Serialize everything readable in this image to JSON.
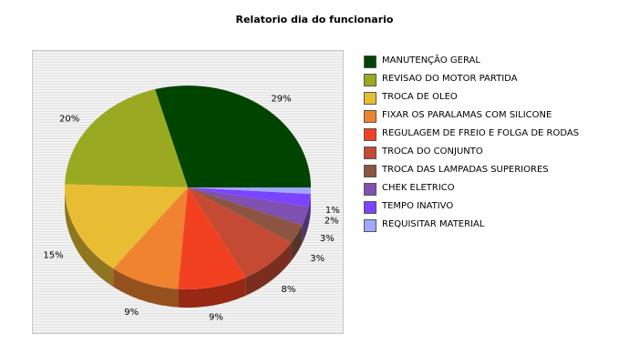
{
  "chart_data": {
    "type": "pie",
    "title": "Relatorio dia do funcionario",
    "slices": [
      {
        "label": "MANUTENÇÃO GERAL",
        "value": 29,
        "value_label": "29%",
        "color": "#004400"
      },
      {
        "label": "REVISAO DO MOTOR PARTIDA",
        "value": 20,
        "value_label": "20%",
        "color": "#99aa22"
      },
      {
        "label": "TROCA DE OLEO",
        "value": 15,
        "value_label": "15%",
        "color": "#e9bd33"
      },
      {
        "label": "FIXAR OS PARALAMAS COM SILICONE",
        "value": 9,
        "value_label": "9%",
        "color": "#ef8330"
      },
      {
        "label": "REGULAGEM DE FREIO E FOLGA DE RODAS",
        "value": 9,
        "value_label": "9%",
        "color": "#f24121"
      },
      {
        "label": "TROCA DO CONJUNTO",
        "value": 8,
        "value_label": "8%",
        "color": "#c44a33"
      },
      {
        "label": "TROCA DAS LAMPADAS SUPERIORES",
        "value": 3,
        "value_label": "3%",
        "color": "#8b5541"
      },
      {
        "label": "CHEK ELETRICO",
        "value": 3,
        "value_label": "3%",
        "color": "#8050b0"
      },
      {
        "label": "TEMPO INATIVO",
        "value": 2,
        "value_label": "2%",
        "color": "#7b44ff"
      },
      {
        "label": "REQUISITAR MATERIAL",
        "value": 1,
        "value_label": "1%",
        "color": "#9fa8ff"
      }
    ],
    "legend_position": "right",
    "style": "3d"
  }
}
